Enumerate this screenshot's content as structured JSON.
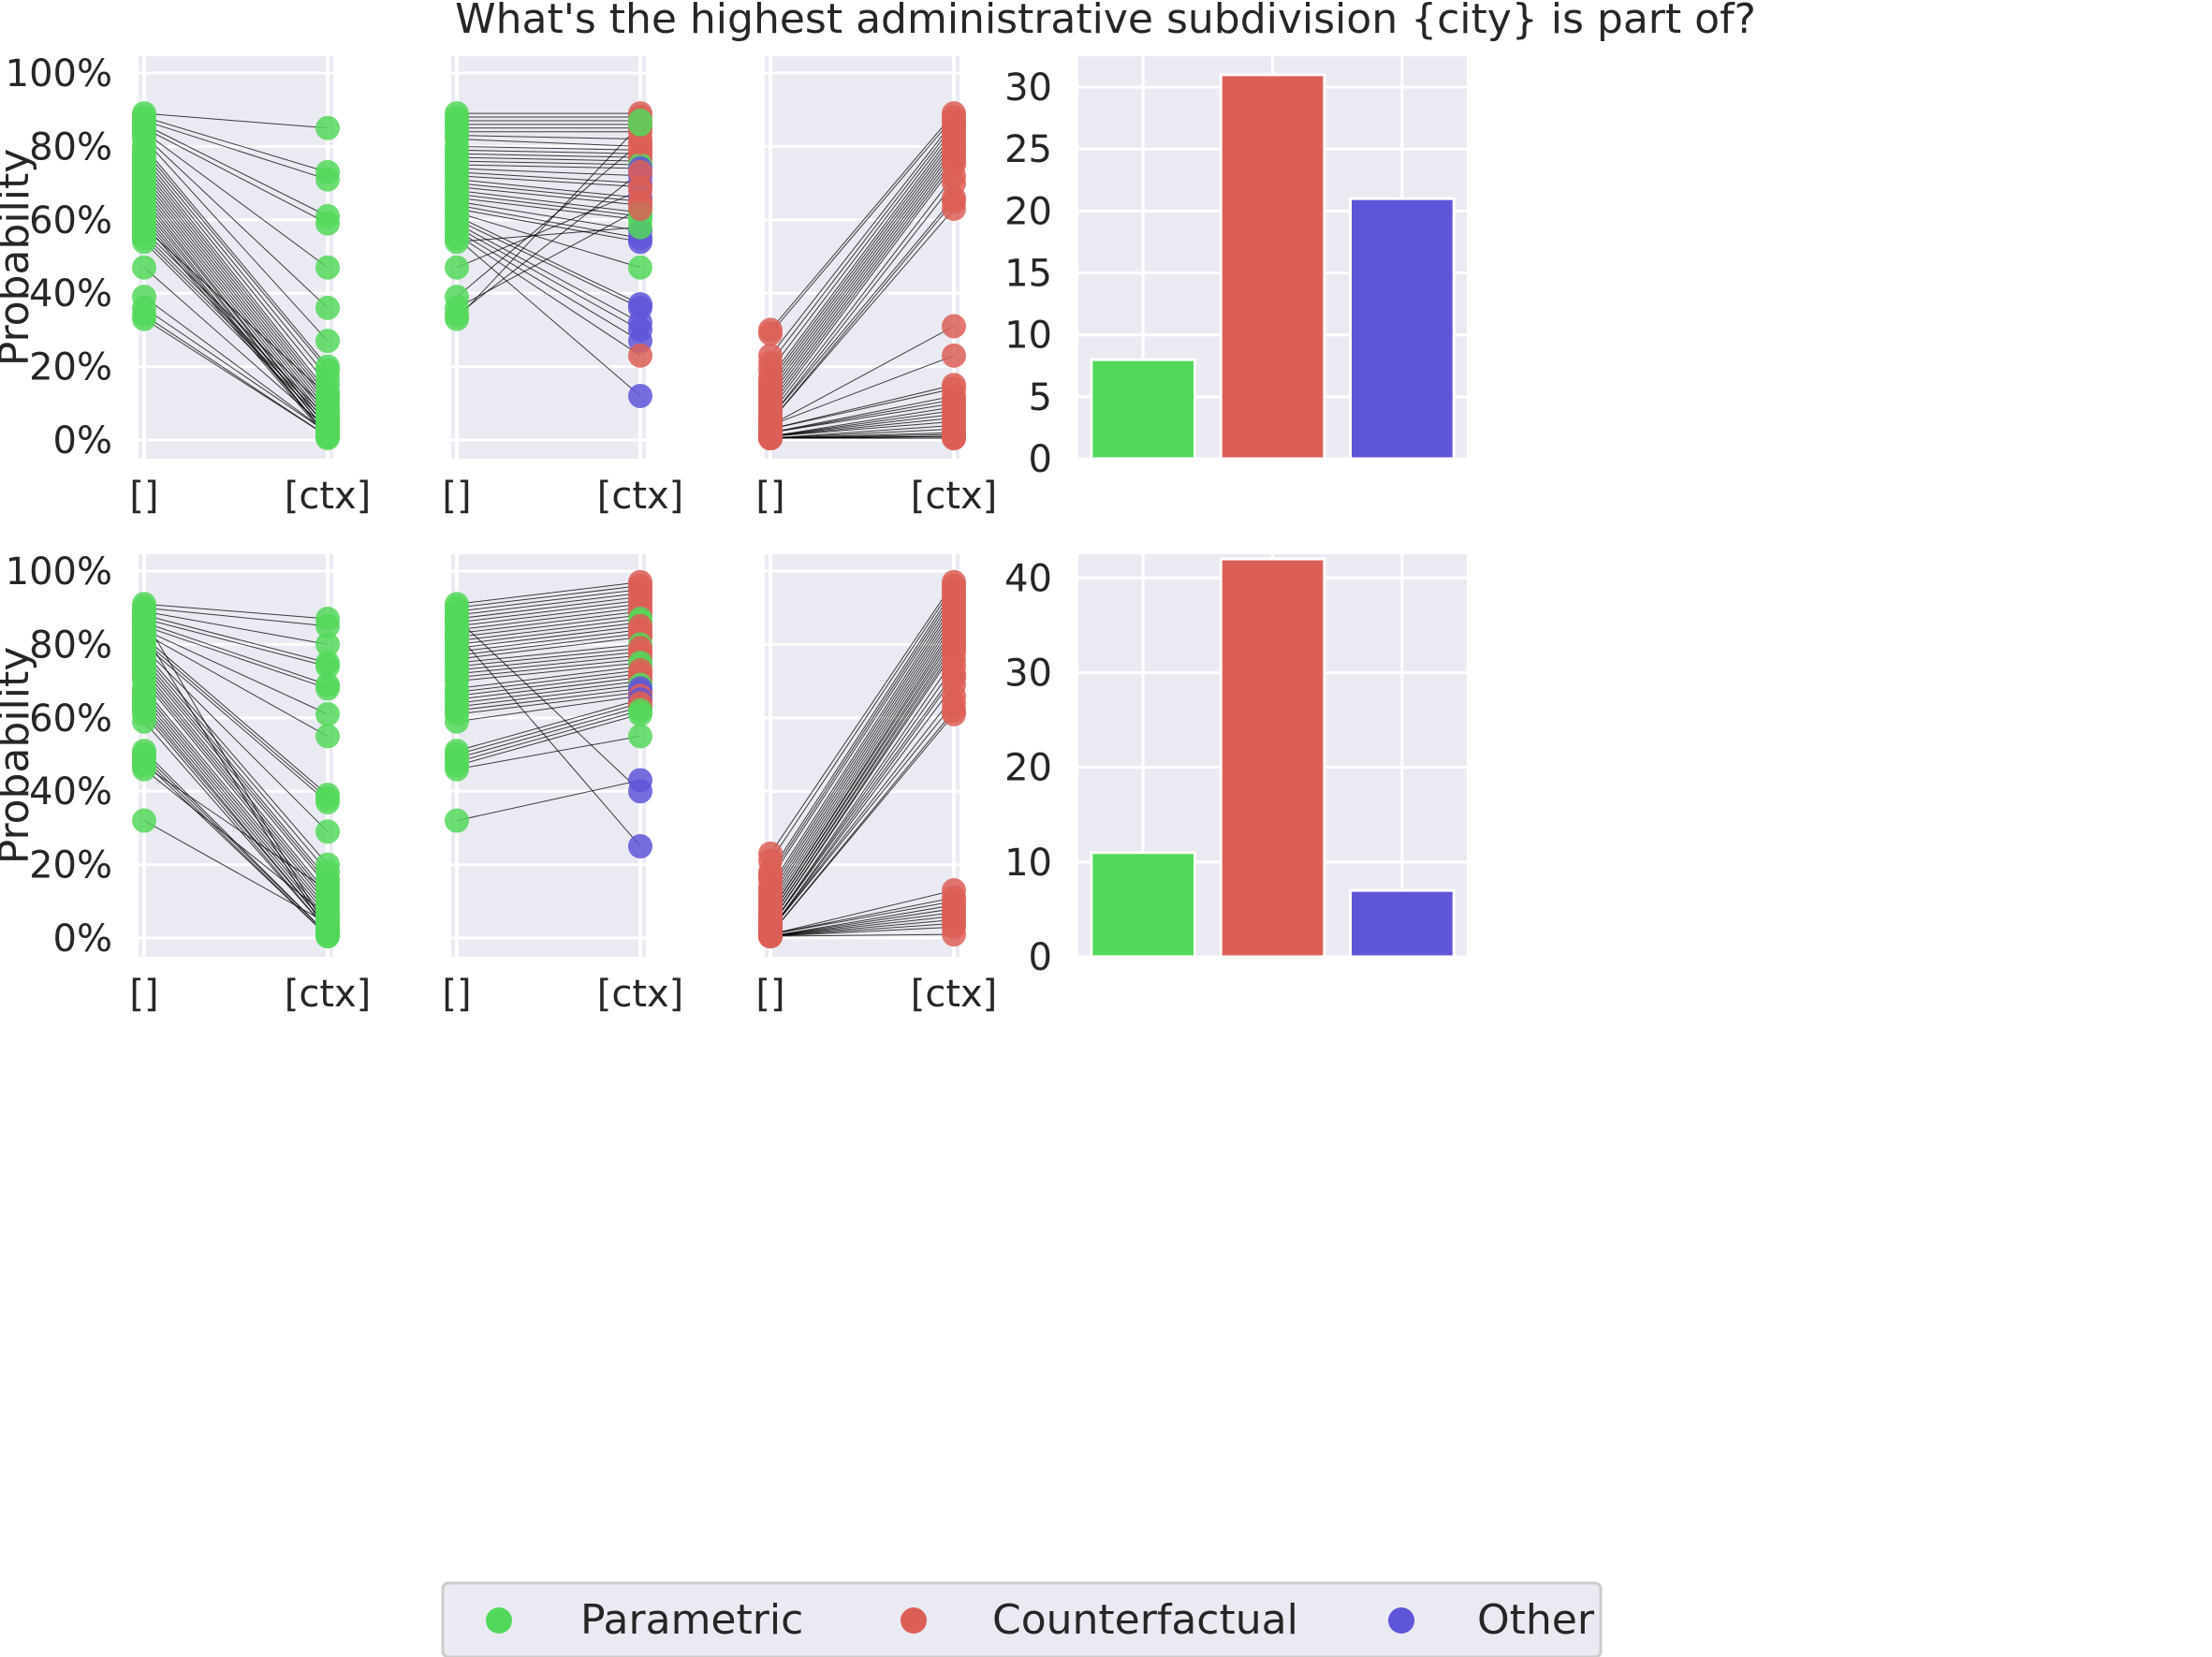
{
  "title": "What's the highest administrative subdivision {city} is part of?",
  "colors": {
    "parametric": "#53d85b",
    "counterfactual": "#dc5f57",
    "other": "#5f55d8",
    "panel_bg": "#eaeaf2",
    "grid": "#ffffff",
    "line": "#000000"
  },
  "legend": {
    "items": [
      {
        "key": "parametric",
        "label": "Parametric"
      },
      {
        "key": "counterfactual",
        "label": "Counterfactual"
      },
      {
        "key": "other",
        "label": "Other"
      }
    ]
  },
  "chart_data": [
    {
      "type": "slope",
      "row": 0,
      "col": 0,
      "ylabel": "Probability",
      "ylim": [
        0,
        1
      ],
      "yticks": [
        "0%",
        "20%",
        "40%",
        "60%",
        "80%",
        "100%"
      ],
      "categories": [
        "[]",
        "[ctx]"
      ],
      "color_right": "parametric",
      "left": [
        0.89,
        0.88,
        0.87,
        0.86,
        0.85,
        0.84,
        0.83,
        0.82,
        0.8,
        0.79,
        0.78,
        0.77,
        0.76,
        0.75,
        0.74,
        0.73,
        0.72,
        0.71,
        0.7,
        0.69,
        0.68,
        0.67,
        0.66,
        0.65,
        0.64,
        0.63,
        0.62,
        0.61,
        0.6,
        0.59,
        0.58,
        0.57,
        0.56,
        0.55,
        0.54,
        0.47,
        0.39,
        0.36,
        0.34,
        0.33
      ],
      "right": [
        0.85,
        0.73,
        0.71,
        0.61,
        0.59,
        0.47,
        0.36,
        0.27,
        0.2,
        0.19,
        0.17,
        0.15,
        0.13,
        0.12,
        0.11,
        0.1,
        0.09,
        0.08,
        0.07,
        0.06,
        0.05,
        0.04,
        0.03,
        0.03,
        0.02,
        0.02,
        0.01,
        0.01,
        0.01,
        0.005,
        0.12,
        0.08,
        0.06,
        0.05,
        0.04,
        0.03,
        0.02,
        0.02,
        0.01,
        0.01
      ]
    },
    {
      "type": "slope",
      "row": 0,
      "col": 1,
      "ylim": [
        0,
        1
      ],
      "yticks": [
        "0%",
        "20%",
        "40%",
        "60%",
        "80%",
        "100%"
      ],
      "categories": [
        "[]",
        "[ctx]"
      ],
      "left": [
        0.89,
        0.88,
        0.87,
        0.86,
        0.85,
        0.84,
        0.83,
        0.82,
        0.8,
        0.79,
        0.78,
        0.77,
        0.76,
        0.75,
        0.74,
        0.73,
        0.72,
        0.71,
        0.7,
        0.69,
        0.68,
        0.67,
        0.66,
        0.65,
        0.64,
        0.63,
        0.62,
        0.61,
        0.6,
        0.59,
        0.58,
        0.57,
        0.56,
        0.55,
        0.54,
        0.47,
        0.39,
        0.36,
        0.34,
        0.33
      ],
      "right": [
        {
          "v": 0.89,
          "c": "counterfactual"
        },
        {
          "v": 0.88,
          "c": "counterfactual"
        },
        {
          "v": 0.87,
          "c": "parametric"
        },
        {
          "v": 0.86,
          "c": "counterfactual"
        },
        {
          "v": 0.85,
          "c": "counterfactual"
        },
        {
          "v": 0.84,
          "c": "counterfactual"
        },
        {
          "v": 0.82,
          "c": "counterfactual"
        },
        {
          "v": 0.8,
          "c": "counterfactual"
        },
        {
          "v": 0.79,
          "c": "counterfactual"
        },
        {
          "v": 0.78,
          "c": "counterfactual"
        },
        {
          "v": 0.77,
          "c": "counterfactual"
        },
        {
          "v": 0.76,
          "c": "counterfactual"
        },
        {
          "v": 0.75,
          "c": "parametric"
        },
        {
          "v": 0.74,
          "c": "other"
        },
        {
          "v": 0.72,
          "c": "other"
        },
        {
          "v": 0.7,
          "c": "other"
        },
        {
          "v": 0.69,
          "c": "counterfactual"
        },
        {
          "v": 0.66,
          "c": "other"
        },
        {
          "v": 0.65,
          "c": "counterfactual"
        },
        {
          "v": 0.64,
          "c": "counterfactual"
        },
        {
          "v": 0.62,
          "c": "parametric"
        },
        {
          "v": 0.61,
          "c": "parametric"
        },
        {
          "v": 0.6,
          "c": "parametric"
        },
        {
          "v": 0.57,
          "c": "other"
        },
        {
          "v": 0.55,
          "c": "other"
        },
        {
          "v": 0.54,
          "c": "other"
        },
        {
          "v": 0.47,
          "c": "parametric"
        },
        {
          "v": 0.37,
          "c": "other"
        },
        {
          "v": 0.36,
          "c": "other"
        },
        {
          "v": 0.32,
          "c": "other"
        },
        {
          "v": 0.3,
          "c": "other"
        },
        {
          "v": 0.27,
          "c": "other"
        },
        {
          "v": 0.23,
          "c": "counterfactual"
        },
        {
          "v": 0.12,
          "c": "other"
        },
        {
          "v": 0.58,
          "c": "parametric"
        },
        {
          "v": 0.68,
          "c": "counterfactual"
        },
        {
          "v": 0.81,
          "c": "counterfactual"
        },
        {
          "v": 0.63,
          "c": "counterfactual"
        },
        {
          "v": 0.73,
          "c": "counterfactual"
        },
        {
          "v": 0.86,
          "c": "parametric"
        }
      ]
    },
    {
      "type": "slope",
      "row": 0,
      "col": 2,
      "ylim": [
        0,
        1
      ],
      "yticks": [
        "0%",
        "20%",
        "40%",
        "60%",
        "80%",
        "100%"
      ],
      "categories": [
        "[]",
        "[ctx]"
      ],
      "color_left": "counterfactual",
      "color_right": "counterfactual",
      "left": [
        0.3,
        0.29,
        0.23,
        0.21,
        0.19,
        0.17,
        0.16,
        0.15,
        0.14,
        0.13,
        0.12,
        0.11,
        0.1,
        0.09,
        0.08,
        0.07,
        0.06,
        0.06,
        0.05,
        0.05,
        0.04,
        0.04,
        0.03,
        0.03,
        0.02,
        0.02,
        0.02,
        0.01,
        0.01,
        0.01,
        0.01,
        0.01,
        0.005,
        0.005,
        0.005,
        0.005,
        0.005,
        0.005,
        0.005,
        0.005
      ],
      "right": [
        0.89,
        0.88,
        0.87,
        0.86,
        0.85,
        0.84,
        0.83,
        0.82,
        0.81,
        0.8,
        0.79,
        0.78,
        0.77,
        0.76,
        0.75,
        0.72,
        0.7,
        0.66,
        0.65,
        0.63,
        0.31,
        0.23,
        0.15,
        0.14,
        0.12,
        0.11,
        0.1,
        0.09,
        0.08,
        0.07,
        0.06,
        0.05,
        0.04,
        0.03,
        0.02,
        0.015,
        0.01,
        0.01,
        0.005,
        0.005
      ]
    },
    {
      "type": "bar",
      "row": 0,
      "col": 3,
      "categories": [
        "Parametric",
        "Counterfactual",
        "Other"
      ],
      "values": [
        8,
        31,
        21
      ],
      "ylim": [
        0,
        32.5
      ],
      "yticks": [
        0,
        5,
        10,
        15,
        20,
        25,
        30
      ]
    },
    {
      "type": "slope",
      "row": 1,
      "col": 0,
      "ylabel": "Probability",
      "ylim": [
        0,
        1
      ],
      "yticks": [
        "0%",
        "20%",
        "40%",
        "60%",
        "80%",
        "100%"
      ],
      "categories": [
        "[]",
        "[ctx]"
      ],
      "color_right": "parametric",
      "left": [
        0.91,
        0.9,
        0.89,
        0.88,
        0.87,
        0.86,
        0.85,
        0.84,
        0.83,
        0.82,
        0.81,
        0.8,
        0.79,
        0.78,
        0.77,
        0.76,
        0.75,
        0.74,
        0.73,
        0.72,
        0.71,
        0.7,
        0.68,
        0.67,
        0.66,
        0.65,
        0.64,
        0.63,
        0.62,
        0.61,
        0.59,
        0.51,
        0.5,
        0.49,
        0.48,
        0.47,
        0.46,
        0.32,
        0.87,
        0.83
      ],
      "right": [
        0.87,
        0.85,
        0.8,
        0.75,
        0.74,
        0.69,
        0.68,
        0.61,
        0.55,
        0.39,
        0.38,
        0.37,
        0.29,
        0.2,
        0.18,
        0.16,
        0.15,
        0.14,
        0.12,
        0.11,
        0.1,
        0.09,
        0.08,
        0.07,
        0.06,
        0.05,
        0.04,
        0.03,
        0.03,
        0.02,
        0.02,
        0.01,
        0.01,
        0.005,
        0.005,
        0.13,
        0.06,
        0.04,
        0.02,
        0.01
      ]
    },
    {
      "type": "slope",
      "row": 1,
      "col": 1,
      "ylim": [
        0,
        1
      ],
      "yticks": [
        "0%",
        "20%",
        "40%",
        "60%",
        "80%",
        "100%"
      ],
      "categories": [
        "[]",
        "[ctx]"
      ],
      "left": [
        0.91,
        0.9,
        0.89,
        0.88,
        0.87,
        0.86,
        0.85,
        0.84,
        0.83,
        0.82,
        0.81,
        0.8,
        0.79,
        0.78,
        0.77,
        0.76,
        0.75,
        0.74,
        0.73,
        0.72,
        0.71,
        0.7,
        0.68,
        0.67,
        0.66,
        0.65,
        0.64,
        0.63,
        0.62,
        0.61,
        0.59,
        0.51,
        0.5,
        0.49,
        0.48,
        0.47,
        0.46,
        0.32,
        0.87,
        0.83
      ],
      "right": [
        {
          "v": 0.97,
          "c": "counterfactual"
        },
        {
          "v": 0.96,
          "c": "counterfactual"
        },
        {
          "v": 0.95,
          "c": "counterfactual"
        },
        {
          "v": 0.94,
          "c": "counterfactual"
        },
        {
          "v": 0.93,
          "c": "counterfactual"
        },
        {
          "v": 0.92,
          "c": "counterfactual"
        },
        {
          "v": 0.91,
          "c": "counterfactual"
        },
        {
          "v": 0.9,
          "c": "counterfactual"
        },
        {
          "v": 0.89,
          "c": "counterfactual"
        },
        {
          "v": 0.88,
          "c": "counterfactual"
        },
        {
          "v": 0.87,
          "c": "parametric"
        },
        {
          "v": 0.86,
          "c": "parametric"
        },
        {
          "v": 0.85,
          "c": "counterfactual"
        },
        {
          "v": 0.84,
          "c": "counterfactual"
        },
        {
          "v": 0.83,
          "c": "counterfactual"
        },
        {
          "v": 0.82,
          "c": "counterfactual"
        },
        {
          "v": 0.8,
          "c": "parametric"
        },
        {
          "v": 0.79,
          "c": "counterfactual"
        },
        {
          "v": 0.78,
          "c": "counterfactual"
        },
        {
          "v": 0.77,
          "c": "counterfactual"
        },
        {
          "v": 0.76,
          "c": "counterfactual"
        },
        {
          "v": 0.75,
          "c": "parametric"
        },
        {
          "v": 0.74,
          "c": "parametric"
        },
        {
          "v": 0.73,
          "c": "counterfactual"
        },
        {
          "v": 0.72,
          "c": "counterfactual"
        },
        {
          "v": 0.71,
          "c": "counterfactual"
        },
        {
          "v": 0.7,
          "c": "counterfactual"
        },
        {
          "v": 0.69,
          "c": "parametric"
        },
        {
          "v": 0.68,
          "c": "other"
        },
        {
          "v": 0.67,
          "c": "other"
        },
        {
          "v": 0.66,
          "c": "counterfactual"
        },
        {
          "v": 0.65,
          "c": "other"
        },
        {
          "v": 0.64,
          "c": "counterfactual"
        },
        {
          "v": 0.63,
          "c": "counterfactual"
        },
        {
          "v": 0.62,
          "c": "parametric"
        },
        {
          "v": 0.61,
          "c": "parametric"
        },
        {
          "v": 0.55,
          "c": "parametric"
        },
        {
          "v": 0.43,
          "c": "other"
        },
        {
          "v": 0.4,
          "c": "other"
        },
        {
          "v": 0.25,
          "c": "other"
        }
      ]
    },
    {
      "type": "slope",
      "row": 1,
      "col": 2,
      "ylim": [
        0,
        1
      ],
      "yticks": [
        "0%",
        "20%",
        "40%",
        "60%",
        "80%",
        "100%"
      ],
      "categories": [
        "[]",
        "[ctx]"
      ],
      "color_left": "counterfactual",
      "color_right": "counterfactual",
      "left": [
        0.23,
        0.21,
        0.18,
        0.17,
        0.16,
        0.14,
        0.13,
        0.12,
        0.11,
        0.1,
        0.09,
        0.08,
        0.07,
        0.07,
        0.06,
        0.06,
        0.05,
        0.05,
        0.04,
        0.04,
        0.03,
        0.03,
        0.03,
        0.02,
        0.02,
        0.02,
        0.02,
        0.01,
        0.01,
        0.01,
        0.01,
        0.01,
        0.005,
        0.005,
        0.005,
        0.005,
        0.005,
        0.005,
        0.005,
        0.005
      ],
      "right": [
        0.97,
        0.96,
        0.95,
        0.94,
        0.93,
        0.92,
        0.91,
        0.9,
        0.89,
        0.88,
        0.87,
        0.86,
        0.85,
        0.84,
        0.83,
        0.82,
        0.81,
        0.8,
        0.79,
        0.78,
        0.76,
        0.74,
        0.72,
        0.71,
        0.69,
        0.66,
        0.64,
        0.62,
        0.61,
        0.13,
        0.11,
        0.1,
        0.09,
        0.08,
        0.07,
        0.06,
        0.05,
        0.04,
        0.03,
        0.01
      ]
    },
    {
      "type": "bar",
      "row": 1,
      "col": 3,
      "categories": [
        "Parametric",
        "Counterfactual",
        "Other"
      ],
      "values": [
        11,
        42,
        7
      ],
      "ylim": [
        0,
        42.5
      ],
      "yticks": [
        0,
        10,
        20,
        30,
        40
      ]
    }
  ]
}
